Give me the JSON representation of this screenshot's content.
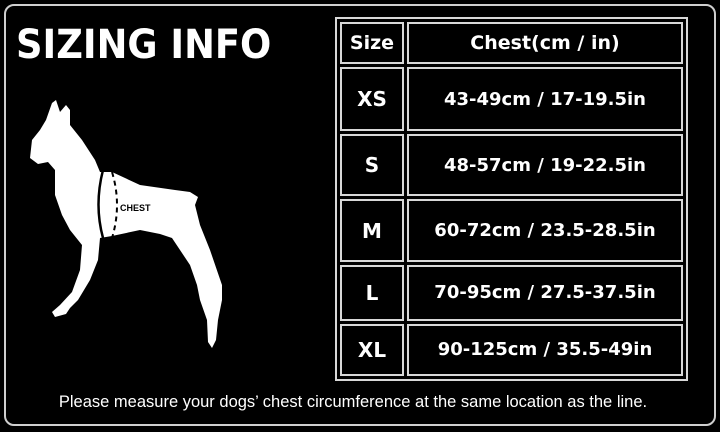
{
  "title": "SIZING INFO",
  "illustration": {
    "label": "CHEST"
  },
  "table": {
    "headers": [
      "Size",
      "Chest(cm / in)"
    ],
    "rows": [
      {
        "size": "XS",
        "chest": "43-49cm / 17-19.5in"
      },
      {
        "size": "S",
        "chest": "48-57cm / 19-22.5in"
      },
      {
        "size": "M",
        "chest": "60-72cm / 23.5-28.5in"
      },
      {
        "size": "L",
        "chest": "70-95cm / 27.5-37.5in"
      },
      {
        "size": "XL",
        "chest": "90-125cm / 35.5-49in"
      }
    ]
  },
  "note": "Please measure your dogs’  chest circumference at the same location as the line."
}
